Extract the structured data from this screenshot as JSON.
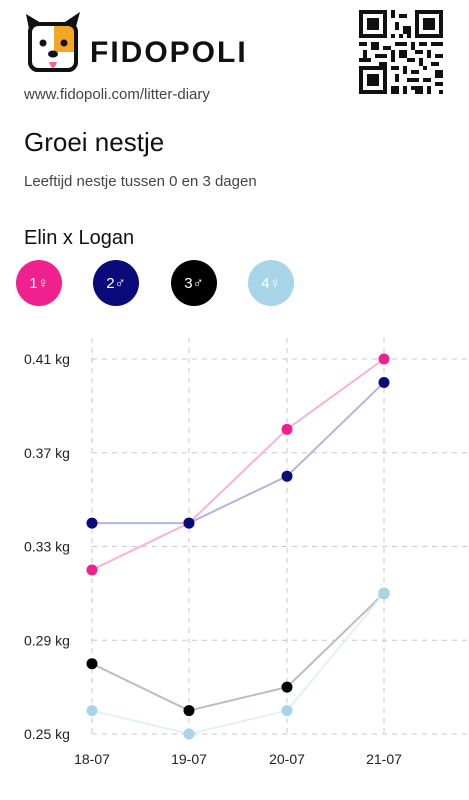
{
  "brand": {
    "name": "FIDOPOLI",
    "url": "www.fidopoli.com/litter-diary"
  },
  "page": {
    "title": "Groei nestje",
    "subtitle": "Leeftijd nestje tussen 0 en 3 dagen",
    "litter": "Elin x Logan"
  },
  "pups": [
    {
      "label": "1♀",
      "color": "#f0208f"
    },
    {
      "label": "2♂",
      "color": "#0a0a7a"
    },
    {
      "label": "3♂",
      "color": "#000000"
    },
    {
      "label": "4♀",
      "color": "#a8d4e8"
    }
  ],
  "chart_data": {
    "type": "line",
    "x": [
      "18-07",
      "19-07",
      "20-07",
      "21-07"
    ],
    "y_ticks": [
      "0.25 kg",
      "0.29 kg",
      "0.33 kg",
      "0.37 kg",
      "0.41 kg"
    ],
    "ylim": [
      0.25,
      0.41
    ],
    "grid": true,
    "series": [
      {
        "name": "1♀",
        "color": "#f0208f",
        "line_color": "#f6b3d8",
        "values": [
          0.32,
          0.34,
          0.38,
          0.41
        ]
      },
      {
        "name": "2♂",
        "color": "#0a0a7a",
        "line_color": "#b4b4dc",
        "values": [
          0.34,
          0.34,
          0.36,
          0.4
        ]
      },
      {
        "name": "3♂",
        "color": "#000000",
        "line_color": "#bdbdbd",
        "values": [
          0.28,
          0.26,
          0.27,
          0.31
        ]
      },
      {
        "name": "4♀",
        "color": "#a8d4e8",
        "line_color": "#e2f1f7",
        "values": [
          0.26,
          0.25,
          0.26,
          0.31
        ]
      }
    ]
  }
}
